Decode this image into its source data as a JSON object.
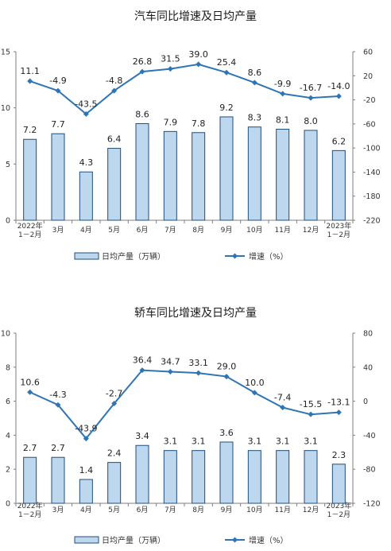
{
  "chart_data": [
    {
      "type": "bar+line",
      "title": "汽车同比增速及日均产量",
      "categories": [
        [
          "2022年",
          "1－2月"
        ],
        [
          "3月"
        ],
        [
          "4月"
        ],
        [
          "5月"
        ],
        [
          "6月"
        ],
        [
          "7月"
        ],
        [
          "8月"
        ],
        [
          "9月"
        ],
        [
          "10月"
        ],
        [
          "11月"
        ],
        [
          "12月"
        ],
        [
          "2023年",
          "1－2月"
        ]
      ],
      "series": [
        {
          "name": "日均产量（万辆）",
          "type": "bar",
          "axis": "left",
          "values": [
            7.2,
            7.7,
            4.3,
            6.4,
            8.6,
            7.9,
            7.8,
            9.2,
            8.3,
            8.1,
            8.0,
            6.2
          ],
          "labels": [
            "7.2",
            "7.7",
            "4.3",
            "6.4",
            "8.6",
            "7.9",
            "7.8",
            "9.2",
            "8.3",
            "8.1",
            "8.0",
            "6.2"
          ]
        },
        {
          "name": "增速（%）",
          "type": "line",
          "axis": "right",
          "values": [
            11.1,
            -4.9,
            -43.5,
            -4.8,
            26.8,
            31.5,
            39.0,
            25.4,
            8.6,
            -9.9,
            -16.7,
            -14.0
          ],
          "labels": [
            "11.1",
            "-4.9",
            "-43.5",
            "-4.8",
            "26.8",
            "31.5",
            "39.0",
            "25.4",
            "8.6",
            "-9.9",
            "-16.7",
            "-14.0"
          ]
        }
      ],
      "y_left": {
        "min": 0,
        "max": 15,
        "ticks": [
          "0",
          "5",
          "10",
          "15"
        ]
      },
      "y_right": {
        "min": -220,
        "max": 60,
        "ticks": [
          "-220",
          "-180",
          "-140",
          "-100",
          "-60",
          "-20",
          "20",
          "60"
        ]
      },
      "grid": false,
      "legend_position": "bottom",
      "colors": {
        "bar_fill": "#bdd7ee",
        "bar_stroke": "#1f4e79",
        "line": "#2e75b6"
      }
    },
    {
      "type": "bar+line",
      "title": "轿车同比增速及日均产量",
      "categories": [
        [
          "2022年",
          "1－2月"
        ],
        [
          "3月"
        ],
        [
          "4月"
        ],
        [
          "5月"
        ],
        [
          "6月"
        ],
        [
          "7月"
        ],
        [
          "8月"
        ],
        [
          "9月"
        ],
        [
          "10月"
        ],
        [
          "11月"
        ],
        [
          "12月"
        ],
        [
          "2023年",
          "1－2月"
        ]
      ],
      "series": [
        {
          "name": "日均产量（万辆）",
          "type": "bar",
          "axis": "left",
          "values": [
            2.7,
            2.7,
            1.4,
            2.4,
            3.4,
            3.1,
            3.1,
            3.6,
            3.1,
            3.1,
            3.1,
            2.3
          ],
          "labels": [
            "2.7",
            "2.7",
            "1.4",
            "2.4",
            "3.4",
            "3.1",
            "3.1",
            "3.6",
            "3.1",
            "3.1",
            "3.1",
            "2.3"
          ]
        },
        {
          "name": "增速（%）",
          "type": "line",
          "axis": "right",
          "values": [
            10.6,
            -4.3,
            -43.9,
            -2.7,
            36.4,
            34.7,
            33.1,
            29.0,
            10.0,
            -7.4,
            -15.5,
            -13.1
          ],
          "labels": [
            "10.6",
            "-4.3",
            "-43.9",
            "-2.7",
            "36.4",
            "34.7",
            "33.1",
            "29.0",
            "10.0",
            "-7.4",
            "-15.5",
            "-13.1"
          ]
        }
      ],
      "y_left": {
        "min": 0,
        "max": 10,
        "ticks": [
          "0",
          "2",
          "4",
          "6",
          "8",
          "10"
        ]
      },
      "y_right": {
        "min": -120,
        "max": 80,
        "ticks": [
          "-120",
          "-80",
          "-40",
          "0",
          "40",
          "80"
        ]
      },
      "grid": false,
      "legend_position": "bottom",
      "colors": {
        "bar_fill": "#bdd7ee",
        "bar_stroke": "#1f4e79",
        "line": "#2e75b6"
      }
    }
  ]
}
